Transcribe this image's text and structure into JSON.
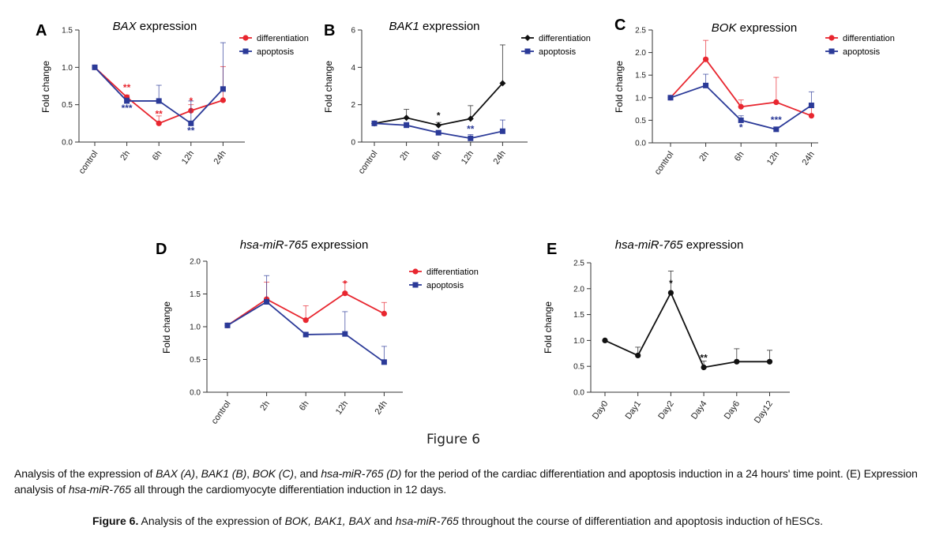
{
  "figure_label": "Figure 6",
  "caption": {
    "parts": [
      {
        "t": "Analysis of the expression of ",
        "i": false
      },
      {
        "t": "BAX (A)",
        "i": true
      },
      {
        "t": ", ",
        "i": false
      },
      {
        "t": "BAK1 (B)",
        "i": true
      },
      {
        "t": ", ",
        "i": false
      },
      {
        "t": "BOK (C)",
        "i": true
      },
      {
        "t": ", and ",
        "i": false
      },
      {
        "t": "hsa-miR-765 (D)",
        "i": true
      },
      {
        "t": " for the period of the cardiac differentiation and apoptosis induction in a 24 hours' time point. (E) Expression analysis of ",
        "i": false
      },
      {
        "t": "hsa-miR-765",
        "i": true
      },
      {
        "t": " all through the cardiomyocyte differentiation induction in 12 days.",
        "i": false
      }
    ]
  },
  "figure_title": {
    "bold": "Figure 6.",
    "parts": [
      {
        "t": " Analysis of the expression of ",
        "i": false
      },
      {
        "t": "BOK, BAK1, BAX",
        "i": true
      },
      {
        "t": " and ",
        "i": false
      },
      {
        "t": "hsa-miR-765",
        "i": true
      },
      {
        "t": " throughout the course of differentiation and apoptosis induction of hESCs.",
        "i": false
      }
    ]
  },
  "chart_data": [
    {
      "panel": "A",
      "type": "line",
      "title_italic": "BAX",
      "title_rest": " expression",
      "ylabel": "Fold change",
      "categories": [
        "control",
        "2h",
        "6h",
        "12h",
        "24h"
      ],
      "yticks": [
        "0.0",
        "0.5",
        "1.0",
        "1.5"
      ],
      "ylim": [
        0,
        1.5
      ],
      "series": [
        {
          "name": "differentiation",
          "color": "#e8262f",
          "marker": "circle",
          "values": [
            1.0,
            0.6,
            0.25,
            0.42,
            0.56
          ],
          "err": [
            0,
            0.03,
            0.1,
            0.08,
            0.45
          ],
          "sig": [
            {
              "i": 1,
              "text": "**",
              "pos": "above"
            },
            {
              "i": 2,
              "text": "**",
              "pos": "above"
            },
            {
              "i": 3,
              "text": "*",
              "pos": "above"
            }
          ]
        },
        {
          "name": "apoptosis",
          "color": "#2b3a98",
          "marker": "square",
          "values": [
            1.0,
            0.55,
            0.55,
            0.25,
            0.71
          ],
          "err": [
            0,
            0.04,
            0.21,
            0.3,
            0.62
          ],
          "sig": [
            {
              "i": 1,
              "text": "***",
              "pos": "below"
            },
            {
              "i": 3,
              "text": "**",
              "pos": "below"
            }
          ]
        }
      ],
      "legend": "top-right"
    },
    {
      "panel": "B",
      "type": "line",
      "title_italic": "BAK1",
      "title_rest": " expression",
      "ylabel": "Fold change",
      "categories": [
        "control",
        "2h",
        "6h",
        "12h",
        "24h"
      ],
      "yticks": [
        "0",
        "2",
        "4",
        "6"
      ],
      "ylim": [
        0,
        6
      ],
      "series": [
        {
          "name": "differentiation",
          "color": "#111111",
          "marker": "diamond",
          "values": [
            1.0,
            1.3,
            0.9,
            1.25,
            3.15
          ],
          "err": [
            0,
            0.45,
            0.15,
            0.7,
            2.05
          ],
          "sig": [
            {
              "i": 2,
              "text": "*",
              "pos": "above"
            }
          ]
        },
        {
          "name": "apoptosis",
          "color": "#2b3a98",
          "marker": "square",
          "values": [
            1.0,
            0.9,
            0.5,
            0.2,
            0.58
          ],
          "err": [
            0,
            0.15,
            0.1,
            0.2,
            0.6
          ],
          "sig": [
            {
              "i": 3,
              "text": "**",
              "pos": "above"
            }
          ]
        }
      ],
      "legend": "top-right"
    },
    {
      "panel": "C",
      "type": "line",
      "title_italic": "BOK",
      "title_rest": " expression",
      "ylabel": "Fold change",
      "categories": [
        "control",
        "2h",
        "6h",
        "12h",
        "24h"
      ],
      "yticks": [
        "0.0",
        "0.5",
        "1.0",
        "1.5",
        "2.0",
        "2.5"
      ],
      "ylim": [
        0,
        2.5
      ],
      "series": [
        {
          "name": "differentiation",
          "color": "#e8262f",
          "marker": "circle",
          "values": [
            1.0,
            1.85,
            0.8,
            0.9,
            0.6
          ],
          "err": [
            0,
            0.42,
            0.15,
            0.55,
            0.25
          ],
          "sig": []
        },
        {
          "name": "apoptosis",
          "color": "#2b3a98",
          "marker": "square",
          "values": [
            1.0,
            1.27,
            0.5,
            0.3,
            0.83
          ],
          "err": [
            0,
            0.25,
            0.1,
            0.05,
            0.3
          ],
          "sig": [
            {
              "i": 2,
              "text": "*",
              "pos": "below"
            },
            {
              "i": 3,
              "text": "***",
              "pos": "above"
            }
          ]
        }
      ],
      "legend": "top-right"
    },
    {
      "panel": "D",
      "type": "line",
      "title_italic": "hsa-miR-765",
      "title_rest": " expression",
      "ylabel": "Fold change",
      "categories": [
        "control",
        "2h",
        "6h",
        "12h",
        "24h"
      ],
      "yticks": [
        "0.0",
        "0.5",
        "1.0",
        "1.5",
        "2.0"
      ],
      "ylim": [
        0,
        2.0
      ],
      "series": [
        {
          "name": "differentiation",
          "color": "#e8262f",
          "marker": "circle",
          "values": [
            1.02,
            1.42,
            1.1,
            1.51,
            1.2
          ],
          "err": [
            0,
            0.26,
            0.22,
            0.17,
            0.17
          ],
          "sig": [
            {
              "i": 3,
              "text": "*",
              "pos": "above"
            }
          ]
        },
        {
          "name": "apoptosis",
          "color": "#2b3a98",
          "marker": "square",
          "values": [
            1.02,
            1.38,
            0.88,
            0.89,
            0.46
          ],
          "err": [
            0,
            0.4,
            0,
            0.34,
            0.24
          ],
          "sig": []
        }
      ],
      "legend": "top-right"
    },
    {
      "panel": "E",
      "type": "line",
      "title_italic": "hsa-miR-765",
      "title_rest": " expression",
      "ylabel": "Fold change",
      "categories": [
        "Day0",
        "Day1",
        "Day2",
        "Day4",
        "Day6",
        "Day12"
      ],
      "yticks": [
        "0.0",
        "0.5",
        "1.0",
        "1.5",
        "2.0",
        "2.5"
      ],
      "ylim": [
        0,
        2.5
      ],
      "series": [
        {
          "name": "",
          "color": "#111111",
          "marker": "circle",
          "values": [
            1.0,
            0.71,
            1.92,
            0.48,
            0.59,
            0.59
          ],
          "err": [
            0,
            0.16,
            0.42,
            0.12,
            0.25,
            0.22
          ],
          "sig": [
            {
              "i": 2,
              "text": "*",
              "pos": "above"
            },
            {
              "i": 3,
              "text": "**",
              "pos": "above"
            }
          ]
        }
      ],
      "legend": "none"
    }
  ]
}
